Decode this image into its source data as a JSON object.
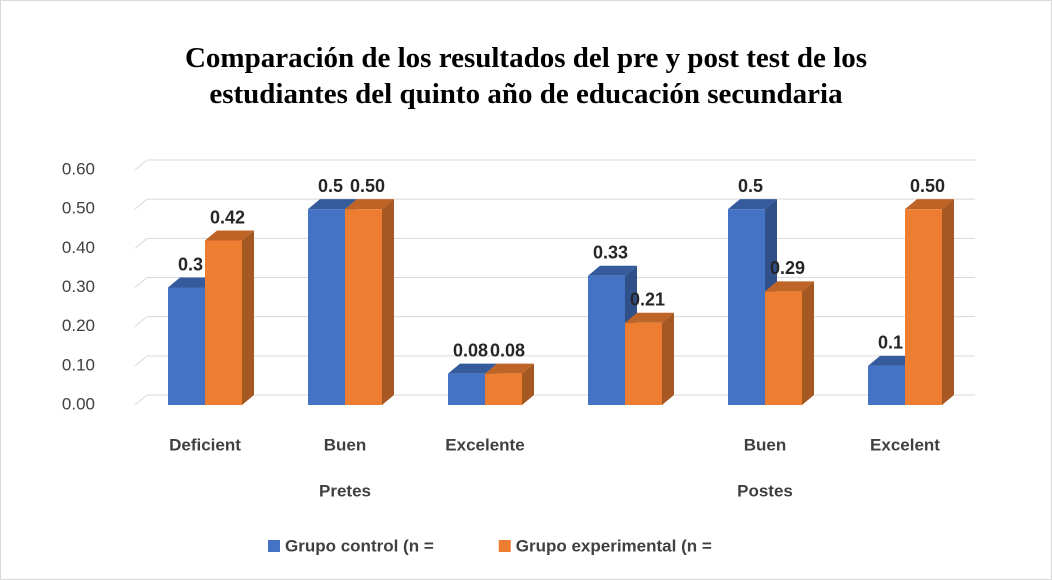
{
  "chart_data": {
    "type": "bar3d",
    "title": "Comparación de los resultados del pre y post test de los estudiantes del quinto año de educación secundaria",
    "categories": [
      "Deficient",
      "Buen",
      "Excelente",
      null,
      "Buen",
      "Excelent"
    ],
    "groups": [
      {
        "label": "Pretes",
        "span": [
          0,
          2
        ]
      },
      {
        "label": "Postes",
        "span": [
          3,
          5
        ]
      }
    ],
    "series": [
      {
        "name": "Grupo control (n =",
        "color": "#4472c4",
        "values": [
          0.3,
          0.5,
          0.08,
          0.33,
          0.5,
          0.1
        ]
      },
      {
        "name": "Grupo experimental (n =",
        "color": "#ed7d31",
        "values": [
          0.42,
          0.5,
          0.08,
          0.21,
          0.29,
          0.5
        ],
        "value_labels": [
          "0.42",
          "0.50",
          "0.08",
          "0.21",
          "0.29",
          "0.50"
        ]
      }
    ],
    "ylim": [
      0,
      0.6
    ],
    "yticks": [
      {
        "value": 0,
        "label": "0.00"
      },
      {
        "value": 0.1,
        "label": "0.10"
      },
      {
        "value": 0.2,
        "label": "0.20"
      },
      {
        "value": 0.3,
        "label": "0.30"
      },
      {
        "value": 0.4,
        "label": "0.40"
      },
      {
        "value": 0.5,
        "label": "0.50"
      },
      {
        "value": 0.6,
        "label": "0.60"
      }
    ],
    "grid": true,
    "legend": "bottom"
  }
}
